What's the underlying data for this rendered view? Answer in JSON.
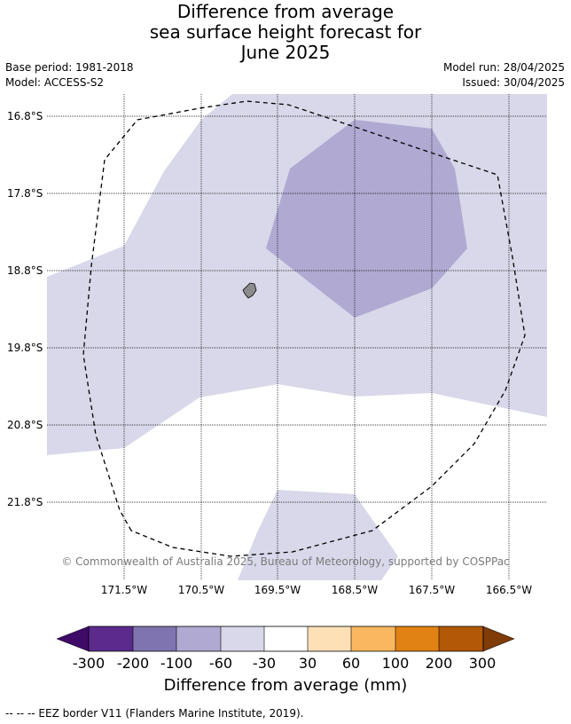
{
  "title": {
    "line1": "Difference from average",
    "line2": "sea surface height forecast for",
    "line3": "June 2025"
  },
  "meta": {
    "base_period": "Base period: 1981-2018",
    "model": "Model: ACCESS-S2",
    "model_run": "Model run: 28/04/2025",
    "issued": "Issued: 30/04/2025"
  },
  "map": {
    "lat_labels": [
      "16.8°S",
      "17.8°S",
      "18.8°S",
      "19.8°S",
      "20.8°S",
      "21.8°S"
    ],
    "lon_labels": [
      "171.5°W",
      "170.5°W",
      "169.5°W",
      "168.5°W",
      "167.5°W",
      "166.5°W"
    ],
    "copyright": "© Commonwealth of Australia 2025, Bureau of Meteorology, supported by COSPPac",
    "land_color": "#8c8c8c",
    "eez_color": "#000000"
  },
  "colorbar": {
    "title": "Difference from average (mm)",
    "tick_labels": [
      "-300",
      "-200",
      "-100",
      "-60",
      "-30",
      "30",
      "60",
      "100",
      "200",
      "300"
    ],
    "colors": [
      "#3f0a68",
      "#5b2a8c",
      "#8074b0",
      "#b0a9d2",
      "#d8d8ea",
      "#ffffff",
      "#fee0b6",
      "#fbb760",
      "#e08214",
      "#b35806",
      "#7f3b08"
    ]
  },
  "footer": {
    "legend_text": "-- -- -- EEZ border V11 (Flanders Marine Institute, 2019)."
  }
}
